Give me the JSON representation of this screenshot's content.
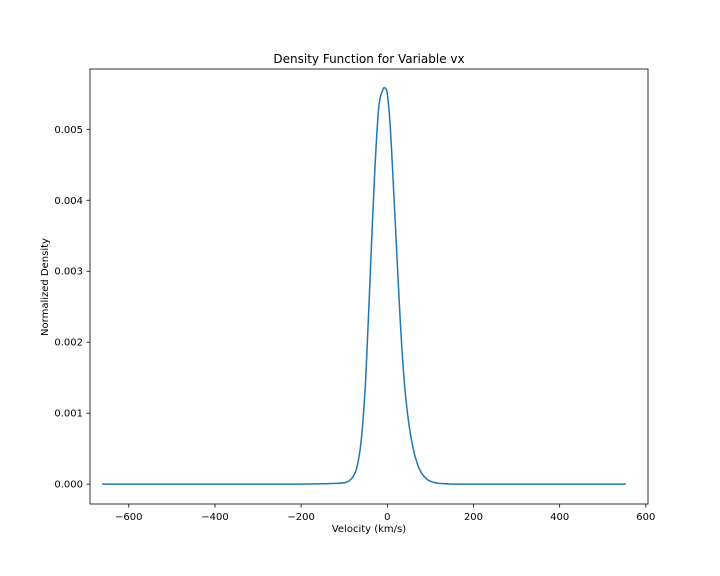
{
  "chart_data": {
    "type": "line",
    "title": "Density Function for Variable vx",
    "xlabel": "Velocity (km/s)",
    "ylabel": "Normalized Density",
    "xlim": [
      -690,
      605
    ],
    "ylim": [
      -0.00028,
      0.00585
    ],
    "xticks": [
      -600,
      -400,
      -200,
      0,
      200,
      400,
      600
    ],
    "xtick_labels": [
      "−600",
      "−400",
      "−200",
      "0",
      "200",
      "400",
      "600"
    ],
    "yticks": [
      0.0,
      0.001,
      0.002,
      0.003,
      0.004,
      0.005
    ],
    "ytick_labels": [
      "0.000",
      "0.001",
      "0.002",
      "0.003",
      "0.004",
      "0.005"
    ],
    "grid": false,
    "series": [
      {
        "color": "#1f77b4",
        "x": [
          -660,
          -400,
          -200,
          -120,
          -100,
          -90,
          -80,
          -70,
          -60,
          -50,
          -40,
          -30,
          -20,
          -10,
          -5,
          -3,
          0,
          5,
          10,
          20,
          30,
          40,
          50,
          60,
          70,
          80,
          90,
          100,
          120,
          140,
          160,
          200,
          400,
          552
        ],
        "y": [
          0.0,
          0.0,
          0.0,
          1e-05,
          2e-05,
          4e-05,
          0.0001,
          0.00025,
          0.00065,
          0.0015,
          0.0029,
          0.0043,
          0.0053,
          0.00556,
          0.00558,
          0.00557,
          0.0055,
          0.0052,
          0.0047,
          0.0035,
          0.0023,
          0.0014,
          0.00085,
          0.0005,
          0.00028,
          0.00015,
          8e-05,
          4e-05,
          1e-05,
          3e-06,
          0.0,
          0.0,
          0.0,
          0.0
        ]
      }
    ]
  }
}
